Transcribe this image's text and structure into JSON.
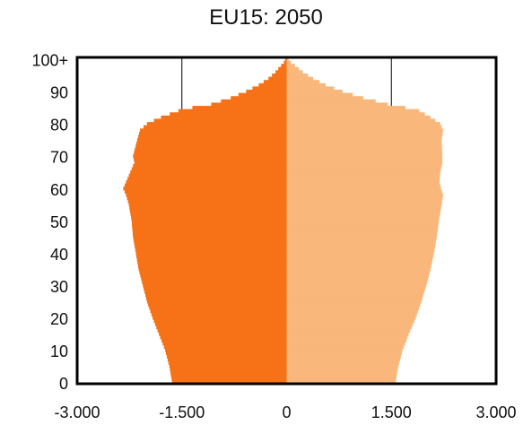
{
  "chart_data": {
    "type": "bar",
    "orientation": "horizontal",
    "title": "EU15: 2050",
    "xlabel": "",
    "ylabel": "",
    "xlim": [
      -3000,
      3000
    ],
    "ylim": [
      0,
      101
    ],
    "xticks": [
      "-3.000",
      "-1.500",
      "0",
      "1.500",
      "3.000"
    ],
    "xtick_values": [
      -3000,
      -1500,
      0,
      1500,
      3000
    ],
    "yticks": [
      "0",
      "10",
      "20",
      "30",
      "40",
      "50",
      "60",
      "70",
      "80",
      "90",
      "100+"
    ],
    "ytick_values": [
      0,
      10,
      20,
      30,
      40,
      50,
      60,
      70,
      80,
      90,
      100
    ],
    "grid": "vertical lines at -1500 and 1500",
    "age_profile": {
      "ages": [
        0,
        5,
        10,
        15,
        20,
        25,
        30,
        35,
        40,
        45,
        50,
        55,
        58,
        60,
        62,
        65,
        68,
        70,
        75,
        78,
        80,
        82,
        84,
        85,
        86,
        88,
        90,
        92,
        94,
        96,
        98,
        99,
        100
      ],
      "male": [
        1640,
        1680,
        1740,
        1830,
        1920,
        2000,
        2060,
        2120,
        2160,
        2200,
        2220,
        2260,
        2300,
        2340,
        2300,
        2240,
        2180,
        2200,
        2140,
        2100,
        2000,
        1800,
        1550,
        1350,
        1080,
        800,
        580,
        400,
        260,
        160,
        80,
        40,
        20
      ],
      "female": [
        1560,
        1600,
        1660,
        1750,
        1850,
        1930,
        2000,
        2060,
        2110,
        2150,
        2180,
        2220,
        2240,
        2210,
        2190,
        2200,
        2230,
        2230,
        2220,
        2240,
        2200,
        2060,
        1900,
        1700,
        1450,
        1100,
        800,
        560,
        380,
        230,
        120,
        60,
        30
      ]
    },
    "series": [
      {
        "name": "",
        "side": "left",
        "color": "#f77216"
      },
      {
        "name": "",
        "side": "right",
        "color": "#f9b77b"
      }
    ]
  }
}
